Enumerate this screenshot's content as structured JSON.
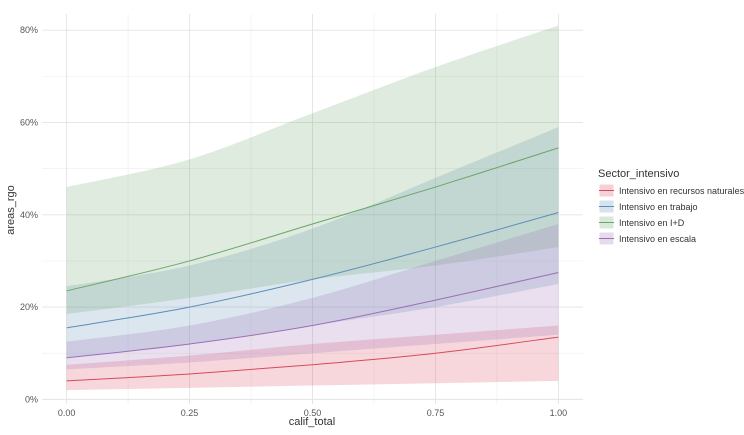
{
  "chart_data": {
    "type": "line",
    "xlabel": "calif_total",
    "ylabel": "areas_rgo",
    "xlim": [
      -0.05,
      1.05
    ],
    "ylim": [
      -0.01,
      0.835
    ],
    "x_ticks": [
      0.0,
      0.25,
      0.5,
      0.75,
      1.0
    ],
    "x_tick_labels": [
      "0.00",
      "0.25",
      "0.50",
      "0.75",
      "1.00"
    ],
    "y_ticks": [
      0.0,
      0.2,
      0.4,
      0.6,
      0.8
    ],
    "y_tick_labels": [
      "0%",
      "20%",
      "40%",
      "60%",
      "80%"
    ],
    "grid": true,
    "legend_title": "Sector_intensivo",
    "legend_position": "right",
    "series": [
      {
        "name": "Intensivo en recursos naturales",
        "color": "#d9485f",
        "x": [
          0,
          0.25,
          0.5,
          0.75,
          1.0
        ],
        "y": [
          0.04,
          0.055,
          0.075,
          0.1,
          0.135
        ],
        "lower": [
          0.02,
          0.025,
          0.03,
          0.035,
          0.04
        ],
        "upper": [
          0.075,
          0.095,
          0.12,
          0.14,
          0.16
        ]
      },
      {
        "name": "Intensivo en trabajo",
        "color": "#5b8db8",
        "x": [
          0,
          0.25,
          0.5,
          0.75,
          1.0
        ],
        "y": [
          0.155,
          0.2,
          0.26,
          0.33,
          0.405
        ],
        "lower": [
          0.09,
          0.12,
          0.16,
          0.2,
          0.25
        ],
        "upper": [
          0.245,
          0.29,
          0.37,
          0.48,
          0.59
        ]
      },
      {
        "name": "Intensivo en I+D",
        "color": "#6aa56a",
        "x": [
          0,
          0.25,
          0.5,
          0.75,
          1.0
        ],
        "y": [
          0.235,
          0.3,
          0.38,
          0.46,
          0.545
        ],
        "lower": [
          0.185,
          0.22,
          0.26,
          0.29,
          0.33
        ],
        "upper": [
          0.46,
          0.52,
          0.62,
          0.72,
          0.81
        ]
      },
      {
        "name": "Intensivo en escala",
        "color": "#9b6fb5",
        "x": [
          0,
          0.25,
          0.5,
          0.75,
          1.0
        ],
        "y": [
          0.09,
          0.12,
          0.16,
          0.215,
          0.275
        ],
        "lower": [
          0.065,
          0.08,
          0.1,
          0.12,
          0.14
        ],
        "upper": [
          0.125,
          0.16,
          0.22,
          0.3,
          0.38
        ]
      }
    ]
  }
}
